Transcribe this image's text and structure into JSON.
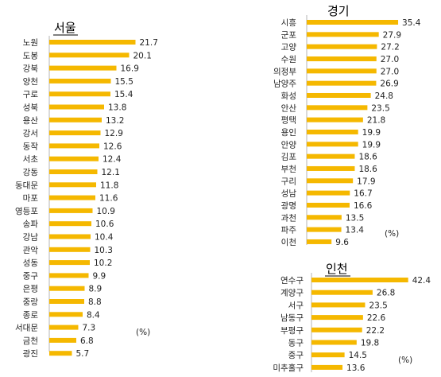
{
  "bar_color": "#f5b800",
  "chart_data": [
    {
      "type": "bar",
      "orientation": "horizontal",
      "title": "서울",
      "unit": "(%)",
      "categories": [
        "노원",
        "도봉",
        "강북",
        "양천",
        "구로",
        "성북",
        "용산",
        "강서",
        "동작",
        "서초",
        "강동",
        "동대문",
        "마포",
        "영등포",
        "송파",
        "강남",
        "관악",
        "성동",
        "중구",
        "은평",
        "중랑",
        "종로",
        "서대문",
        "금천",
        "광진"
      ],
      "values": [
        21.7,
        20.1,
        16.9,
        15.5,
        15.4,
        13.8,
        13.2,
        12.9,
        12.6,
        12.4,
        12.1,
        11.8,
        11.6,
        10.9,
        10.6,
        10.4,
        10.3,
        10.2,
        9.9,
        8.9,
        8.8,
        8.4,
        7.3,
        6.8,
        5.7
      ],
      "value_labels": [
        "21.7",
        "20.1",
        "16.9",
        "15.5",
        "15.4",
        "13.8",
        "13.2",
        "12.9",
        "12.6",
        "12.4",
        "12.1",
        "11.8",
        "11.6",
        "10.9",
        "10.6",
        "10.4",
        "10.3",
        "10.2",
        "9.9",
        "8.9",
        "8.8",
        "8.4",
        "7.3",
        "6.8",
        "5.7"
      ]
    },
    {
      "type": "bar",
      "orientation": "horizontal",
      "title": "경기",
      "unit": "(%)",
      "categories": [
        "시흥",
        "군포",
        "고양",
        "수원",
        "의정부",
        "남양주",
        "화성",
        "안산",
        "평택",
        "용인",
        "안양",
        "김포",
        "부천",
        "구리",
        "성남",
        "광명",
        "과천",
        "파주",
        "이천"
      ],
      "values": [
        35.4,
        27.9,
        27.2,
        27.0,
        27.0,
        26.9,
        24.8,
        23.5,
        21.8,
        19.9,
        19.9,
        18.6,
        18.6,
        17.9,
        16.7,
        16.6,
        13.5,
        13.4,
        9.6
      ],
      "value_labels": [
        "35.4",
        "27.9",
        "27.2",
        "27.0",
        "27.0",
        "26.9",
        "24.8",
        "23.5",
        "21.8",
        "19.9",
        "19.9",
        "18.6",
        "18.6",
        "17.9",
        "16.7",
        "16.6",
        "13.5",
        "13.4",
        "9.6"
      ]
    },
    {
      "type": "bar",
      "orientation": "horizontal",
      "title": "인천",
      "unit": "(%)",
      "categories": [
        "연수구",
        "계양구",
        "서구",
        "남동구",
        "부평구",
        "동구",
        "중구",
        "미추홀구"
      ],
      "values": [
        42.4,
        26.8,
        23.5,
        22.6,
        22.2,
        19.8,
        14.5,
        13.6
      ],
      "value_labels": [
        "42.4",
        "26.8",
        "23.5",
        "22.6",
        "22.2",
        "19.8",
        "14.5",
        "13.6"
      ]
    }
  ]
}
